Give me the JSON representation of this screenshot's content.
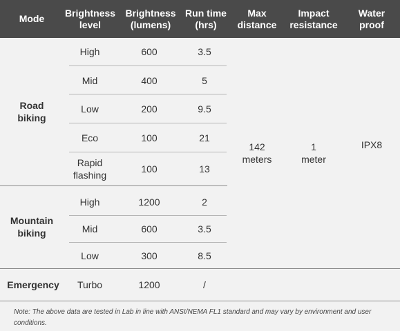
{
  "headers": {
    "mode": "Mode",
    "brightness_level": "Brightness\nlevel",
    "brightness_lumens": "Brightness\n(lumens)",
    "run_time": "Run time\n(hrs)",
    "max_distance": "Max\ndistance",
    "impact_resistance": "Impact\nresistance",
    "water_proof": "Water\nproof"
  },
  "road": {
    "mode": "Road\nbiking",
    "rows": [
      {
        "level": "High",
        "lumens": "600",
        "runtime": "3.5"
      },
      {
        "level": "Mid",
        "lumens": "400",
        "runtime": "5"
      },
      {
        "level": "Low",
        "lumens": "200",
        "runtime": "9.5"
      },
      {
        "level": "Eco",
        "lumens": "100",
        "runtime": "21"
      },
      {
        "level": "Rapid\nflashing",
        "lumens": "100",
        "runtime": "13"
      }
    ]
  },
  "mountain": {
    "mode": "Mountain\nbiking",
    "rows": [
      {
        "level": "High",
        "lumens": "1200",
        "runtime": "2"
      },
      {
        "level": "Mid",
        "lumens": "600",
        "runtime": "3.5"
      },
      {
        "level": "Low",
        "lumens": "300",
        "runtime": "8.5"
      }
    ]
  },
  "emergency": {
    "mode": "Emergency",
    "level": "Turbo",
    "lumens": "1200",
    "runtime": "/"
  },
  "shared": {
    "max_distance": "142\nmeters",
    "impact_resistance": "1\nmeter",
    "water_proof": "IPX8"
  },
  "note": "Note: The above data are tested in Lab in line with ANSI/NEMA FL1 standard and may vary by environment and user conditions.",
  "colors": {
    "header_bg": "#4a4a4a",
    "body_bg": "#f2f2f2"
  }
}
